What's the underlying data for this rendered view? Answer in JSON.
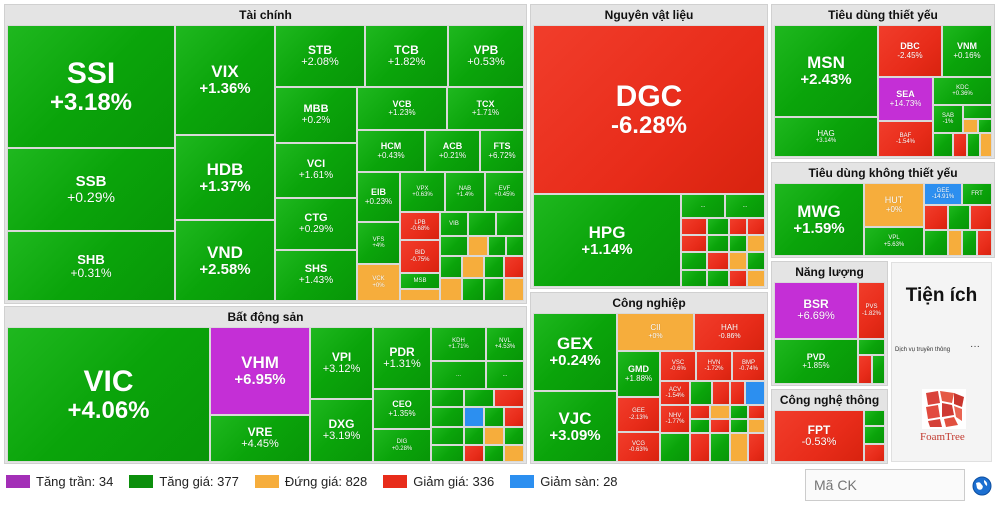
{
  "sectors": {
    "finance": "Tài chính",
    "materials": "Nguyên vật liệu",
    "staples": "Tiêu dùng thiết yếu",
    "discretionary": "Tiêu dùng không thiết yếu",
    "realestate": "Bất động sản",
    "industrials": "Công nghiệp",
    "energy": "Năng lượng",
    "tech": "Công nghệ thông tin",
    "utilities": "Tiện ích"
  },
  "tiles": {
    "SSI": {
      "t": "SSI",
      "v": "+3.18%"
    },
    "SSB": {
      "t": "SSB",
      "v": "+0.29%"
    },
    "SHB": {
      "t": "SHB",
      "v": "+0.31%"
    },
    "VIX": {
      "t": "VIX",
      "v": "+1.36%"
    },
    "HDB": {
      "t": "HDB",
      "v": "+1.37%"
    },
    "VND": {
      "t": "VND",
      "v": "+2.58%"
    },
    "STB": {
      "t": "STB",
      "v": "+2.08%"
    },
    "TCB": {
      "t": "TCB",
      "v": "+1.82%"
    },
    "VPB": {
      "t": "VPB",
      "v": "+0.53%"
    },
    "MBB": {
      "t": "MBB",
      "v": "+0.2%"
    },
    "VCB": {
      "t": "VCB",
      "v": "+1.23%"
    },
    "TCX": {
      "t": "TCX",
      "v": "+1.71%"
    },
    "VCI": {
      "t": "VCI",
      "v": "+1.61%"
    },
    "HCM": {
      "t": "HCM",
      "v": "+0.43%"
    },
    "ACB": {
      "t": "ACB",
      "v": "+0.21%"
    },
    "FTS": {
      "t": "FTS",
      "v": "+6.72%"
    },
    "CTG": {
      "t": "CTG",
      "v": "+0.29%"
    },
    "SHS": {
      "t": "SHS",
      "v": "+1.43%"
    },
    "EIB": {
      "t": "EIB",
      "v": "+0.23%"
    },
    "VPX": {
      "t": "VPX",
      "v": "+0.63%"
    },
    "NAB": {
      "t": "NAB",
      "v": "+1.4%"
    },
    "EVF": {
      "t": "EVF",
      "v": "+0.45%"
    },
    "VFS": {
      "t": "VFS",
      "v": "+4%"
    },
    "LPB": {
      "t": "LPB",
      "v": "-0.68%"
    },
    "VCK": {
      "t": "VCK",
      "v": "+0%"
    },
    "BID": {
      "t": "BID",
      "v": "-0.75%"
    },
    "MSB": {
      "t": "MSB",
      "v": "+1.6%"
    },
    "VIB": {
      "t": "VIB",
      "v": "+0.37%"
    },
    "DGC": {
      "t": "DGC",
      "v": "-6.28%"
    },
    "HPG": {
      "t": "HPG",
      "v": "+1.14%"
    },
    "MSN": {
      "t": "MSN",
      "v": "+2.43%"
    },
    "DBC": {
      "t": "DBC",
      "v": "-2.45%"
    },
    "VNM": {
      "t": "VNM",
      "v": "+0.16%"
    },
    "SEA": {
      "t": "SEA",
      "v": "+14.73%"
    },
    "KDC": {
      "t": "KDC",
      "v": "+0.36%"
    },
    "HAG": {
      "t": "HAG",
      "v": "+3.14%"
    },
    "BAF": {
      "t": "BAF",
      "v": "-1.54%"
    },
    "SAB": {
      "t": "SAB",
      "v": "-1%"
    },
    "MWG": {
      "t": "MWG",
      "v": "+1.59%"
    },
    "HUT": {
      "t": "HUT",
      "v": "+0%"
    },
    "GEE2": {
      "t": "GEE",
      "v": "-14.91%"
    },
    "FRT": {
      "t": "FRT",
      "v": "+1%"
    },
    "VPL": {
      "t": "VPL",
      "v": "+5.63%"
    },
    "BSR": {
      "t": "BSR",
      "v": "+6.69%"
    },
    "PVS": {
      "t": "PVS",
      "v": "-1.82%"
    },
    "PVD": {
      "t": "PVD",
      "v": "+1.85%"
    },
    "FPT": {
      "t": "FPT",
      "v": "-0.53%"
    },
    "VIC": {
      "t": "VIC",
      "v": "+4.06%"
    },
    "VHM": {
      "t": "VHM",
      "v": "+6.95%"
    },
    "VRE": {
      "t": "VRE",
      "v": "+4.45%"
    },
    "VPI": {
      "t": "VPI",
      "v": "+3.12%"
    },
    "DXG": {
      "t": "DXG",
      "v": "+3.19%"
    },
    "PDR": {
      "t": "PDR",
      "v": "+1.31%"
    },
    "CEO": {
      "t": "CEO",
      "v": "+1.35%"
    },
    "DIG": {
      "t": "DIG",
      "v": "+0.28%"
    },
    "KDH": {
      "t": "KDH",
      "v": "+1.71%"
    },
    "NVL": {
      "t": "NVL",
      "v": "+4.53%"
    },
    "NLG": {
      "t": "NLG",
      "v": "+1.16%"
    },
    "KBC": {
      "t": "KBC",
      "v": "+0.88%"
    },
    "DXS": {
      "t": "DXS",
      "v": "+1.2%"
    },
    "GEX": {
      "t": "GEX",
      "v": "+0.24%"
    },
    "VJC": {
      "t": "VJC",
      "v": "+3.09%"
    },
    "CII": {
      "t": "CII",
      "v": "+0%"
    },
    "HAH": {
      "t": "HAH",
      "v": "-0.86%"
    },
    "GMD": {
      "t": "GMD",
      "v": "+1.88%"
    },
    "VSC": {
      "t": "VSC",
      "v": "-0.6%"
    },
    "HVN": {
      "t": "HVN",
      "v": "-1.72%"
    },
    "BMP": {
      "t": "BMP",
      "v": "-0.74%"
    },
    "ACV": {
      "t": "ACV",
      "v": "-1.54%"
    },
    "GEE": {
      "t": "GEE",
      "v": "-2.13%"
    },
    "NHV": {
      "t": "NHV",
      "v": "-1.77%"
    },
    "VCG": {
      "t": "VCG",
      "v": "-0.63%"
    }
  },
  "dots": "...",
  "utilities": {
    "telecom": "Dịch vụ truyền thông",
    "more": "···",
    "logo_text": "FoamTree"
  },
  "legend": [
    {
      "label": "Tăng trần: 34",
      "color": "#a32fb7"
    },
    {
      "label": "Tăng giá: 377",
      "color": "#0c8f0c"
    },
    {
      "label": "Đứng giá: 828",
      "color": "#f6ad3c"
    },
    {
      "label": "Giảm giá: 336",
      "color": "#e82c1a"
    },
    {
      "label": "Giảm sàn: 28",
      "color": "#2c8ff0"
    }
  ],
  "search": {
    "placeholder": "Mã CK"
  }
}
